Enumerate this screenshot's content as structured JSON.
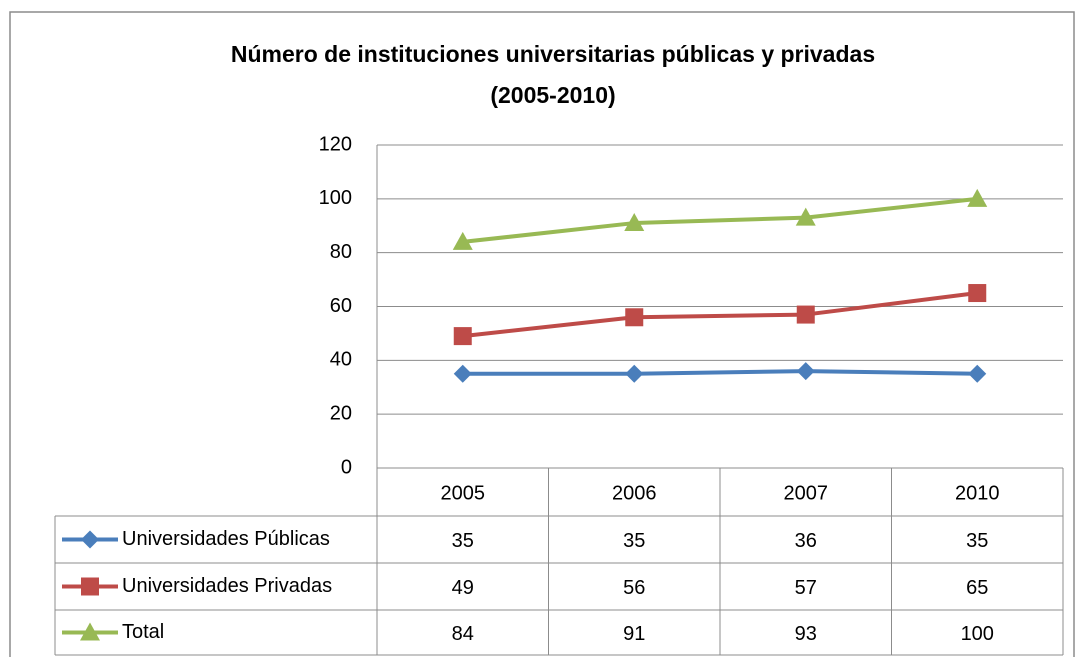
{
  "chart_data": {
    "type": "line",
    "title": [
      "Número de instituciones universitarias públicas y privadas",
      "(2005-2010)"
    ],
    "categories": [
      "2005",
      "2006",
      "2007",
      "2010"
    ],
    "series": [
      {
        "name": "Universidades Públicas",
        "color": "#4a7ebb",
        "marker": "diamond",
        "values": [
          35,
          35,
          36,
          35
        ]
      },
      {
        "name": "Universidades Privadas",
        "color": "#be4b48",
        "marker": "square",
        "values": [
          49,
          56,
          57,
          65
        ]
      },
      {
        "name": "Total",
        "color": "#98b954",
        "marker": "triangle",
        "values": [
          84,
          91,
          93,
          100
        ]
      }
    ],
    "ylim": [
      0,
      120
    ],
    "yticks": [
      0,
      20,
      40,
      60,
      80,
      100,
      120
    ],
    "grid": true,
    "legend": "table"
  }
}
